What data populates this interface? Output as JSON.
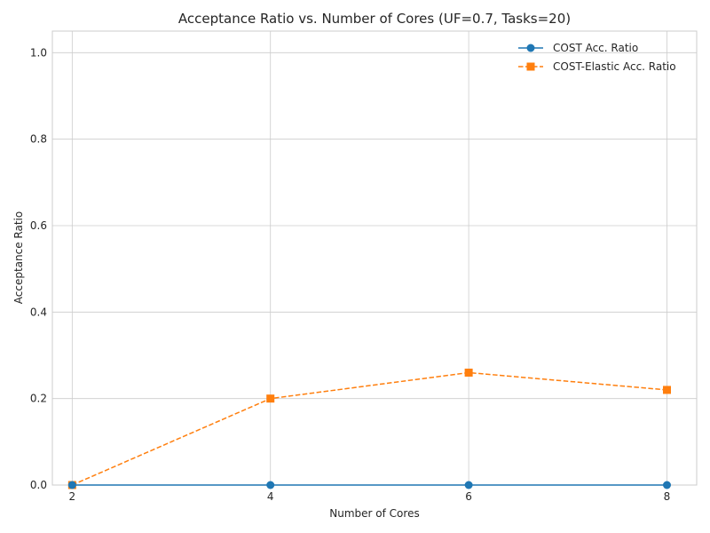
{
  "chart_data": {
    "type": "line",
    "title": "Acceptance Ratio vs. Number of Cores (UF=0.7, Tasks=20)",
    "xlabel": "Number of Cores",
    "ylabel": "Acceptance Ratio",
    "x": [
      2,
      4,
      6,
      8
    ],
    "xticks": [
      "2",
      "4",
      "6",
      "8"
    ],
    "yticks": [
      "0.0",
      "0.2",
      "0.4",
      "0.6",
      "0.8",
      "1.0"
    ],
    "xlim": [
      1.8,
      8.3
    ],
    "ylim": [
      0,
      1.05
    ],
    "grid": true,
    "legend_position": "top-right",
    "series": [
      {
        "name": "COST Acc. Ratio",
        "values": [
          0.0,
          0.0,
          0.0,
          0.0
        ],
        "color": "#1f77b4",
        "marker": "circle",
        "linestyle": "solid"
      },
      {
        "name": "COST-Elastic Acc. Ratio",
        "values": [
          0.0,
          0.2,
          0.26,
          0.22
        ],
        "color": "#ff7f0e",
        "marker": "square",
        "linestyle": "dashed"
      }
    ]
  }
}
